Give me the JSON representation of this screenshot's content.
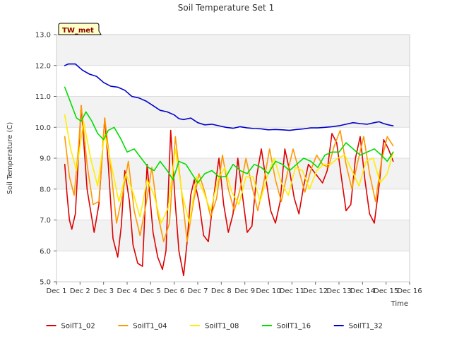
{
  "chart_data": {
    "type": "line",
    "title": "Soil Temperature Set 1",
    "xlabel": "Time",
    "ylabel": "Soil Temperature (C)",
    "site_label": "TW_met",
    "ylim": [
      5.0,
      13.0
    ],
    "yticks": [
      5.0,
      6.0,
      7.0,
      8.0,
      9.0,
      10.0,
      11.0,
      12.0,
      13.0
    ],
    "ytick_labels": [
      "5.0",
      "6.0",
      "7.0",
      "8.0",
      "9.0",
      "10.0",
      "11.0",
      "12.0",
      "13.0"
    ],
    "xlim": [
      1,
      16
    ],
    "xticks": [
      1,
      2,
      3,
      4,
      5,
      6,
      7,
      8,
      9,
      10,
      11,
      12,
      13,
      14,
      15,
      16
    ],
    "xtick_labels": [
      "Dec 1",
      "Dec 2",
      "Dec 3",
      "Dec 4",
      "Dec 5",
      "Dec 6",
      "Dec 7",
      "Dec 8",
      "Dec 9",
      "Dec 10",
      "Dec 11",
      "Dec 12",
      "Dec 13",
      "Dec 14",
      "Dec 15",
      "Dec 16"
    ],
    "grid": true,
    "banded_background": true,
    "legend_position": "bottom-center",
    "series": [
      {
        "name": "SoilT1_02",
        "color": "#dd0000",
        "x": [
          1.35,
          1.45,
          1.55,
          1.65,
          1.8,
          2.05,
          2.3,
          2.6,
          2.8,
          3.05,
          3.2,
          3.4,
          3.6,
          3.75,
          3.9,
          4.1,
          4.25,
          4.45,
          4.65,
          4.85,
          5.1,
          5.3,
          5.5,
          5.65,
          5.85,
          6.05,
          6.2,
          6.4,
          6.55,
          6.7,
          6.85,
          7.05,
          7.25,
          7.45,
          7.65,
          7.9,
          8.1,
          8.3,
          8.5,
          8.7,
          8.9,
          9.1,
          9.3,
          9.5,
          9.7,
          9.9,
          10.1,
          10.3,
          10.5,
          10.7,
          10.9,
          11.1,
          11.3,
          11.5,
          11.7,
          11.9,
          12.1,
          12.3,
          12.5,
          12.7,
          12.9,
          13.1,
          13.3,
          13.5,
          13.7,
          13.9,
          14.1,
          14.3,
          14.5,
          14.7,
          14.9,
          15.1,
          15.3
        ],
        "y": [
          8.8,
          7.8,
          7.0,
          6.7,
          7.2,
          10.7,
          8.0,
          6.6,
          7.5,
          10.3,
          8.8,
          6.4,
          5.8,
          6.8,
          8.6,
          7.6,
          6.2,
          5.6,
          5.5,
          8.8,
          6.6,
          5.8,
          5.4,
          6.0,
          9.9,
          7.5,
          6.0,
          5.2,
          6.3,
          7.8,
          8.3,
          7.6,
          6.5,
          6.3,
          7.6,
          9.0,
          7.5,
          6.6,
          7.2,
          9.0,
          7.8,
          6.6,
          6.8,
          8.4,
          9.3,
          8.3,
          7.3,
          6.9,
          7.6,
          9.3,
          8.6,
          7.7,
          7.2,
          8.1,
          8.8,
          8.6,
          8.4,
          8.2,
          8.6,
          9.8,
          9.5,
          8.4,
          7.3,
          7.5,
          9.0,
          9.7,
          8.3,
          7.2,
          6.9,
          8.1,
          9.6,
          9.3,
          8.9
        ]
      },
      {
        "name": "SoilT1_04",
        "color": "#ff9900",
        "x": [
          1.35,
          1.55,
          1.75,
          1.95,
          2.05,
          2.3,
          2.55,
          2.8,
          3.05,
          3.3,
          3.55,
          3.8,
          4.05,
          4.3,
          4.55,
          4.8,
          5.05,
          5.3,
          5.55,
          5.8,
          6.05,
          6.3,
          6.55,
          6.8,
          7.05,
          7.3,
          7.55,
          7.8,
          8.05,
          8.3,
          8.55,
          8.8,
          9.05,
          9.3,
          9.55,
          9.8,
          10.05,
          10.3,
          10.55,
          10.8,
          11.05,
          11.3,
          11.55,
          11.8,
          12.05,
          12.3,
          12.55,
          12.8,
          13.05,
          13.3,
          13.55,
          13.8,
          14.05,
          14.3,
          14.55,
          14.8,
          15.05,
          15.3
        ],
        "y": [
          9.7,
          8.4,
          7.8,
          9.5,
          10.7,
          8.8,
          7.5,
          7.6,
          10.3,
          8.7,
          6.9,
          7.8,
          8.9,
          7.3,
          6.5,
          7.5,
          8.7,
          7.2,
          6.3,
          6.9,
          9.7,
          8.0,
          6.3,
          7.5,
          8.5,
          7.9,
          7.1,
          7.7,
          9.1,
          8.0,
          7.3,
          8.0,
          9.0,
          8.1,
          7.3,
          8.2,
          9.3,
          8.3,
          7.6,
          8.5,
          9.3,
          8.6,
          7.9,
          8.6,
          9.1,
          8.8,
          8.7,
          9.4,
          9.9,
          8.8,
          8.0,
          8.9,
          9.7,
          8.5,
          7.6,
          8.9,
          9.7,
          9.4
        ]
      },
      {
        "name": "SoilT1_08",
        "color": "#ffee00",
        "x": [
          1.35,
          1.6,
          1.85,
          2.15,
          2.45,
          2.75,
          3.05,
          3.35,
          3.65,
          3.95,
          4.25,
          4.55,
          4.85,
          5.15,
          5.45,
          5.75,
          6.05,
          6.35,
          6.65,
          6.95,
          7.25,
          7.55,
          7.85,
          8.15,
          8.45,
          8.75,
          9.05,
          9.35,
          9.65,
          9.95,
          10.25,
          10.55,
          10.85,
          11.15,
          11.45,
          11.75,
          12.05,
          12.35,
          12.65,
          12.95,
          13.25,
          13.55,
          13.85,
          14.15,
          14.45,
          14.75,
          15.05,
          15.3
        ],
        "y": [
          10.4,
          9.3,
          8.6,
          10.2,
          9.0,
          8.1,
          9.8,
          8.7,
          7.6,
          8.5,
          7.9,
          7.1,
          8.3,
          7.8,
          6.9,
          7.4,
          9.3,
          7.8,
          6.9,
          8.4,
          7.9,
          7.3,
          8.3,
          8.7,
          7.9,
          7.5,
          8.4,
          8.4,
          7.6,
          8.4,
          9.0,
          8.2,
          7.8,
          8.7,
          8.6,
          8.0,
          8.6,
          8.8,
          8.8,
          9.0,
          9.1,
          8.6,
          8.1,
          8.9,
          9.0,
          8.2,
          8.5,
          9.2
        ]
      },
      {
        "name": "SoilT1_16",
        "color": "#00dd00",
        "x": [
          1.35,
          1.6,
          1.85,
          2.05,
          2.25,
          2.5,
          2.75,
          3.0,
          3.2,
          3.45,
          3.75,
          4.0,
          4.3,
          4.6,
          4.9,
          5.15,
          5.4,
          5.7,
          5.95,
          6.2,
          6.5,
          6.75,
          7.0,
          7.3,
          7.6,
          7.9,
          8.2,
          8.5,
          8.8,
          9.1,
          9.4,
          9.7,
          10.0,
          10.3,
          10.6,
          10.9,
          11.2,
          11.5,
          11.8,
          12.1,
          12.4,
          12.7,
          13.0,
          13.3,
          13.6,
          13.9,
          14.2,
          14.5,
          14.8,
          15.05,
          15.3
        ],
        "y": [
          11.3,
          10.8,
          10.3,
          10.2,
          10.5,
          10.2,
          9.8,
          9.6,
          9.9,
          10.0,
          9.6,
          9.2,
          9.3,
          9.0,
          8.7,
          8.6,
          8.9,
          8.6,
          8.3,
          8.9,
          8.8,
          8.5,
          8.2,
          8.5,
          8.6,
          8.4,
          8.4,
          8.8,
          8.6,
          8.5,
          8.8,
          8.7,
          8.5,
          8.9,
          8.8,
          8.6,
          8.8,
          9.0,
          8.9,
          8.7,
          9.1,
          9.2,
          9.2,
          9.5,
          9.3,
          9.1,
          9.2,
          9.3,
          9.1,
          8.9,
          9.2
        ]
      },
      {
        "name": "SoilT1_32",
        "color": "#0000cc",
        "x": [
          1.35,
          1.5,
          1.8,
          2.1,
          2.4,
          2.7,
          3.0,
          3.3,
          3.6,
          3.9,
          4.2,
          4.5,
          4.8,
          5.1,
          5.4,
          5.7,
          6.0,
          6.2,
          6.4,
          6.7,
          7.0,
          7.3,
          7.6,
          7.9,
          8.2,
          8.5,
          8.8,
          9.1,
          9.4,
          9.7,
          10.0,
          10.3,
          10.6,
          10.9,
          11.2,
          11.5,
          11.8,
          12.1,
          12.4,
          12.7,
          13.0,
          13.3,
          13.6,
          13.9,
          14.2,
          14.5,
          14.7,
          14.9,
          15.1,
          15.3
        ],
        "y": [
          12.0,
          12.05,
          12.05,
          11.85,
          11.72,
          11.65,
          11.45,
          11.33,
          11.3,
          11.2,
          11.0,
          10.95,
          10.85,
          10.7,
          10.55,
          10.5,
          10.4,
          10.28,
          10.25,
          10.3,
          10.15,
          10.08,
          10.1,
          10.05,
          10.0,
          9.97,
          10.02,
          9.98,
          9.96,
          9.95,
          9.92,
          9.93,
          9.92,
          9.9,
          9.93,
          9.95,
          9.98,
          9.98,
          10.0,
          10.02,
          10.05,
          10.1,
          10.15,
          10.12,
          10.1,
          10.15,
          10.18,
          10.12,
          10.08,
          10.05
        ]
      }
    ]
  }
}
